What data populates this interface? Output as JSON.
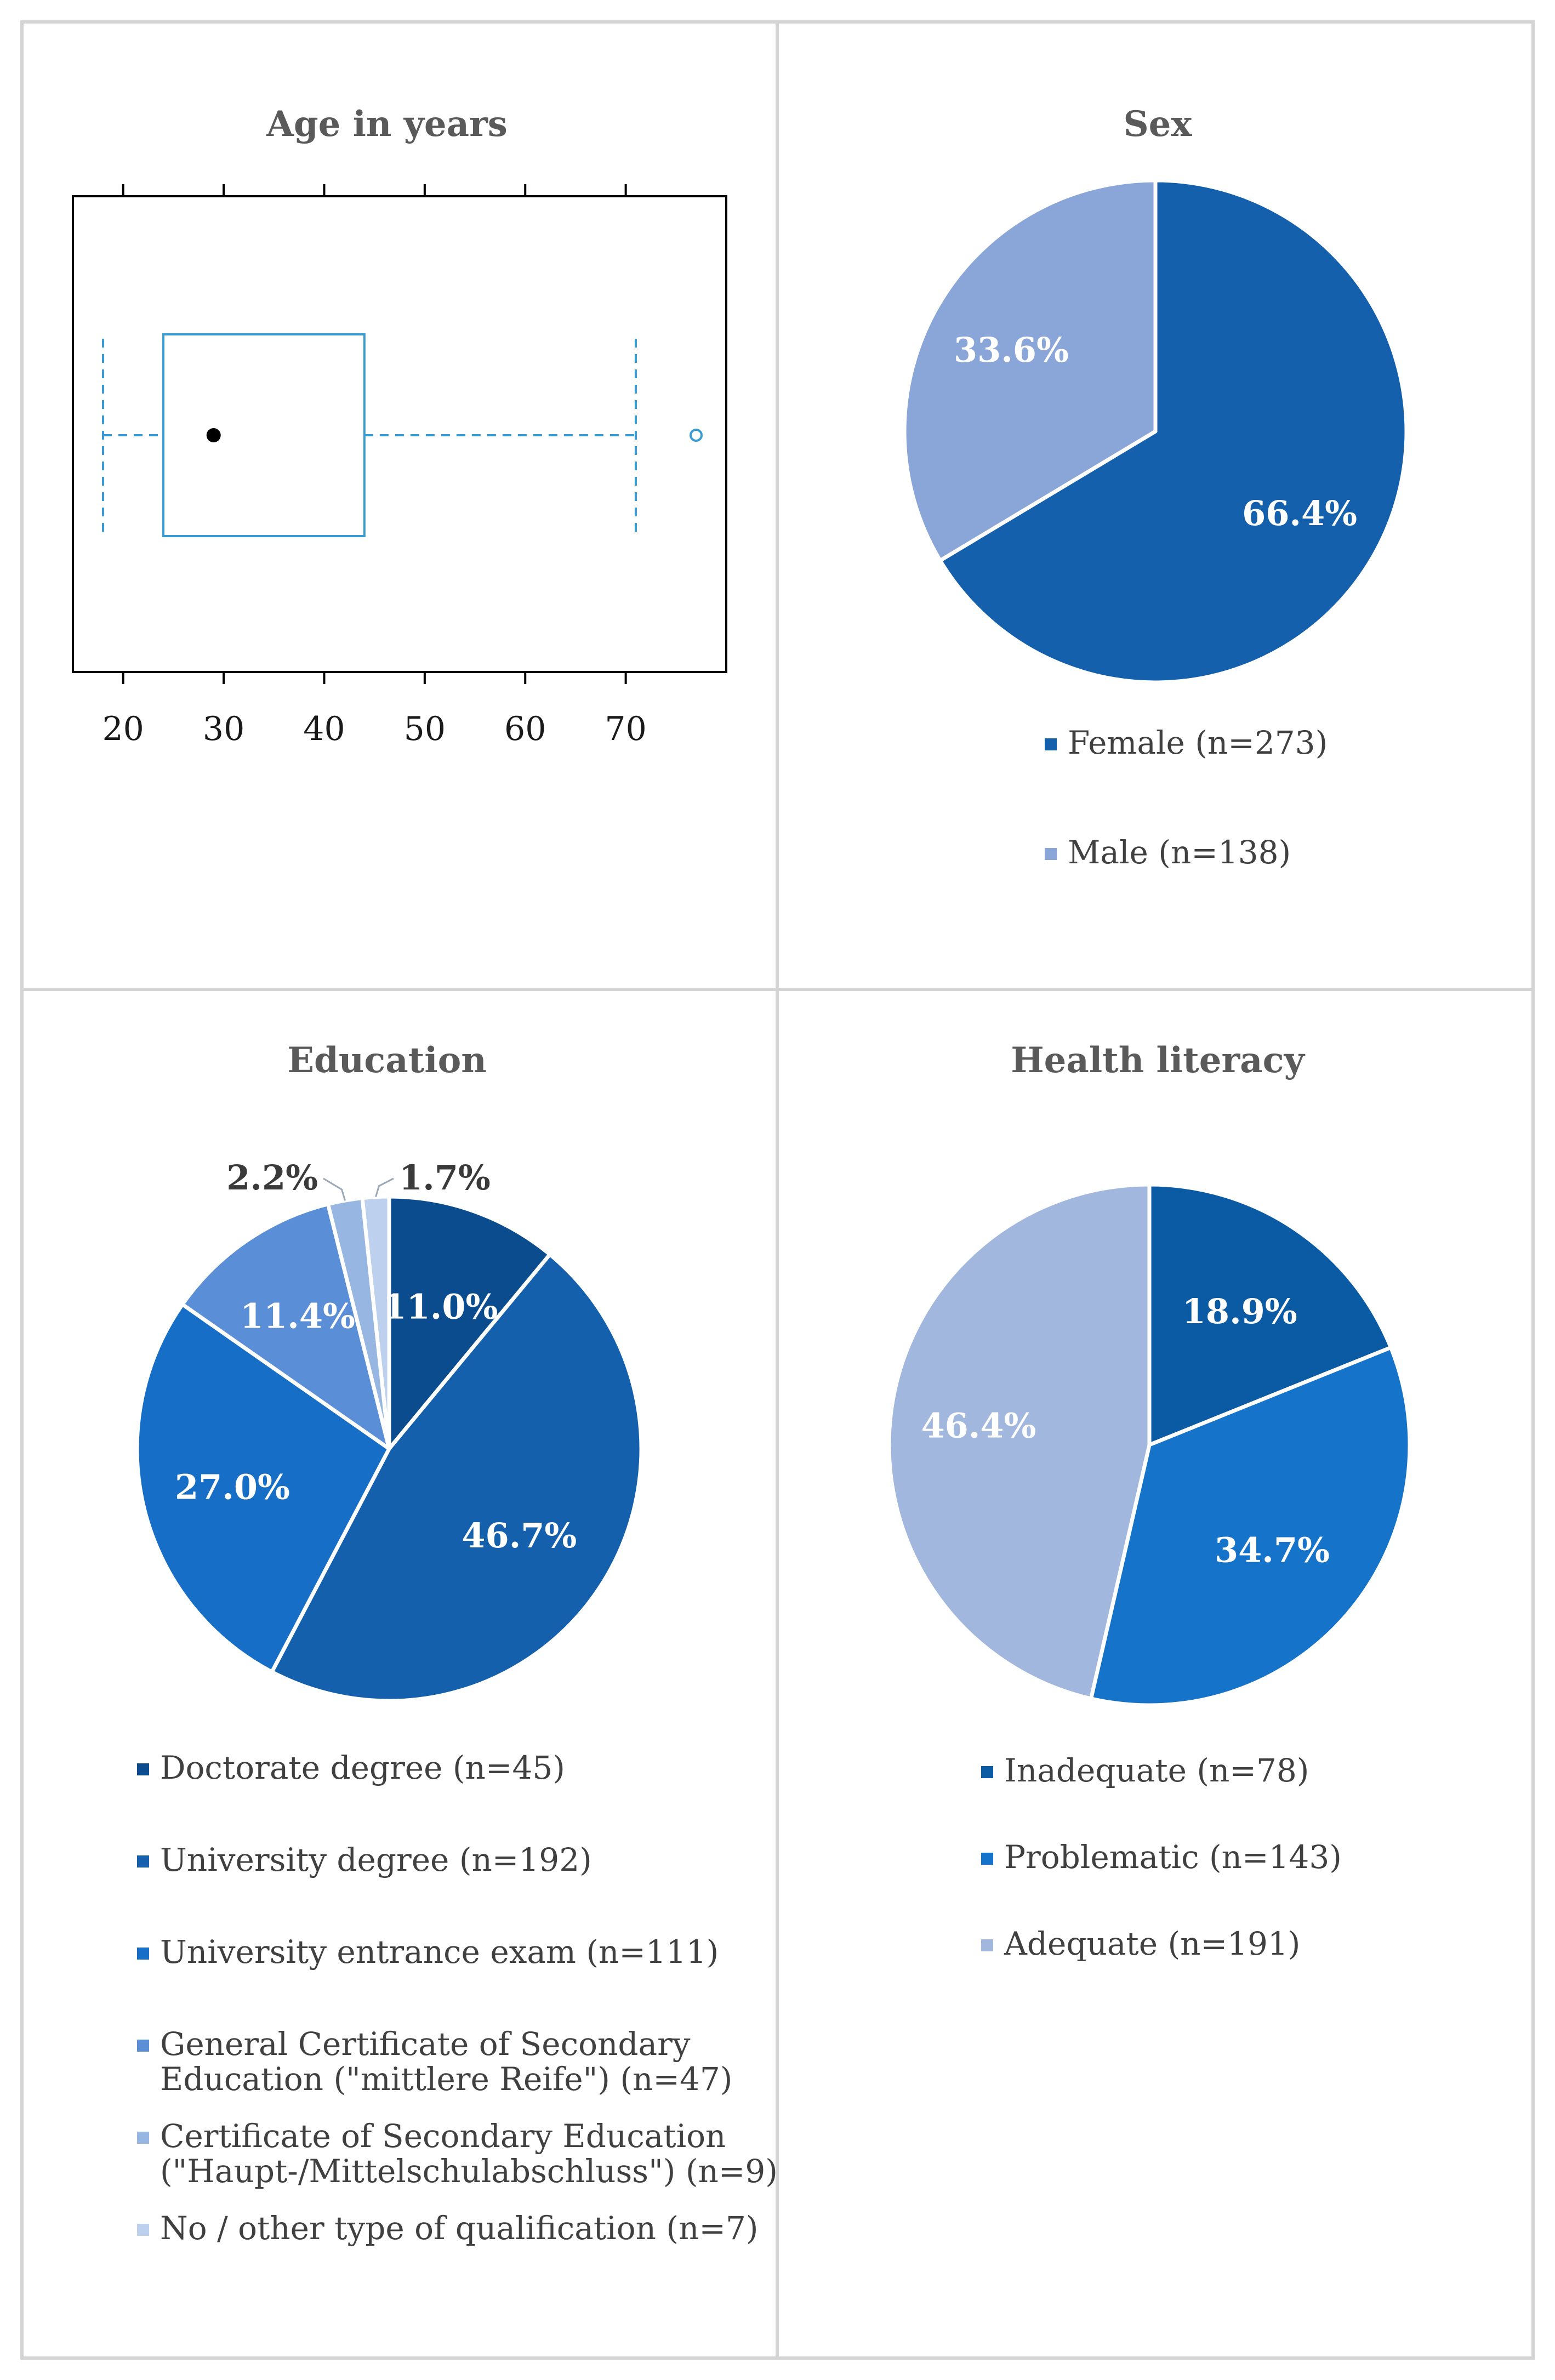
{
  "chart_data": [
    {
      "type": "boxplot",
      "title": "Age in years",
      "xlim": [
        15,
        80
      ],
      "ticks": [
        20,
        30,
        40,
        50,
        60,
        70
      ],
      "tick_labels": [
        "20",
        "30",
        "40",
        "50",
        "60",
        "70"
      ],
      "whisker_low": 18,
      "q1": 24,
      "median": 29,
      "q3": 44,
      "whisker_high": 71,
      "outliers": [
        77
      ],
      "colors": {
        "box": "#3a9bd0",
        "median": "#000000"
      }
    },
    {
      "type": "pie",
      "title": "Sex",
      "slices": [
        {
          "legend": "Female (n=273)",
          "value": 66.4,
          "pct": "66.4%",
          "color": "#1460ac"
        },
        {
          "legend": "Male (n=138)",
          "value": 33.6,
          "pct": "33.6%",
          "color": "#8aa6d8"
        }
      ]
    },
    {
      "type": "pie",
      "title": "Education",
      "slices": [
        {
          "legend": "Doctorate degree (n=45)",
          "legend_lines": [
            "Doctorate degree (n=45)"
          ],
          "value": 11.0,
          "pct": "11.0%",
          "color": "#0b4c8e"
        },
        {
          "legend": " University degree (n=192)",
          "legend_lines": [
            " University degree (n=192)"
          ],
          "value": 46.7,
          "pct": "46.7%",
          "color": "#1460ac"
        },
        {
          "legend": "University entrance exam (n=111)",
          "legend_lines": [
            "University entrance exam (n=111)"
          ],
          "value": 27.0,
          "pct": "27.0%",
          "color": "#166ec6"
        },
        {
          "legend": "General Certificate of Secondary Education (\"mittlere Reife\") (n=47)",
          "legend_lines": [
            "General Certificate of Secondary",
            "Education (\"mittlere Reife\") (n=47)"
          ],
          "value": 11.4,
          "pct": "11.4%",
          "color": "#5a8ed6"
        },
        {
          "legend": "Certificate of Secondary Education (\"Haupt-/Mittelschulabschluss\") (n=9)",
          "legend_lines": [
            "Certificate of Secondary Education",
            "(\"Haupt-/Mittelschulabschluss\") (n=9)"
          ],
          "value": 2.2,
          "pct": "2.2%",
          "color": "#98b6e2"
        },
        {
          "legend": "No / other type of qualification (n=7)",
          "legend_lines": [
            "No / other type of qualification (n=7)"
          ],
          "value": 1.7,
          "pct": "1.7%",
          "color": "#bdd0ee"
        }
      ]
    },
    {
      "type": "pie",
      "title": "Health literacy",
      "slices": [
        {
          "legend": "Inadequate (n=78)",
          "value": 18.9,
          "pct": "18.9%",
          "color": "#0b5aa4"
        },
        {
          "legend": "Problematic (n=143)",
          "value": 34.7,
          "pct": "34.7%",
          "color": "#1573ca"
        },
        {
          "legend": "Adequate (n=191)",
          "value": 46.4,
          "pct": "46.4%",
          "color": "#a2b7dd"
        }
      ]
    }
  ],
  "colors": {
    "panel_border": "#d4d4d4",
    "axis": "#000000"
  }
}
